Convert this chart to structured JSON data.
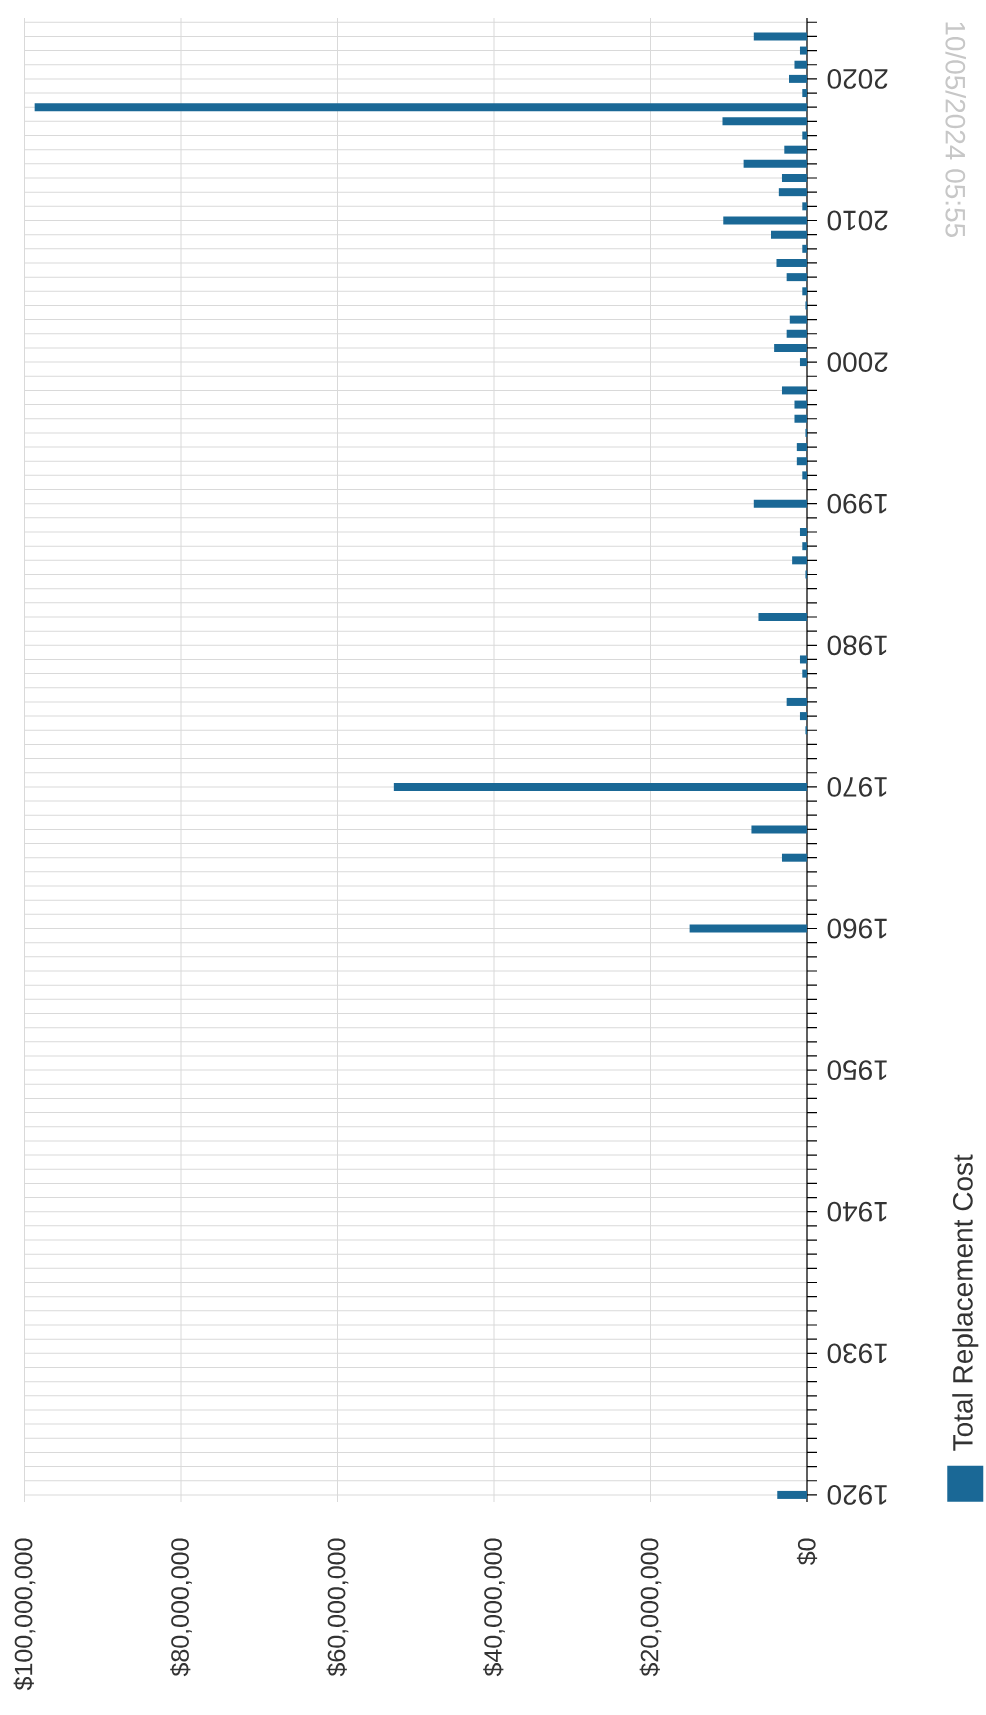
{
  "chart_data": {
    "type": "bar",
    "orientation": "horizontal",
    "x": [
      1920,
      1960,
      1965,
      1967,
      1970,
      1974,
      1975,
      1976,
      1978,
      1979,
      1982,
      1985,
      1986,
      1987,
      1988,
      1990,
      1992,
      1993,
      1994,
      1995,
      1996,
      1997,
      1998,
      2000,
      2001,
      2002,
      2003,
      2004,
      2005,
      2006,
      2007,
      2008,
      2009,
      2010,
      2011,
      2012,
      2013,
      2014,
      2015,
      2016,
      2017,
      2018,
      2019,
      2020,
      2021,
      2022,
      2023
    ],
    "series": [
      {
        "name": "Total Replacement Cost",
        "color": "#1a6896",
        "values": [
          3800000,
          15000000,
          3200000,
          7100000,
          52800000,
          200000,
          900000,
          2600000,
          600000,
          900000,
          6200000,
          200000,
          1900000,
          600000,
          900000,
          6800000,
          600000,
          1300000,
          1300000,
          200000,
          1600000,
          1600000,
          3200000,
          900000,
          4200000,
          2600000,
          2200000,
          200000,
          600000,
          2600000,
          3900000,
          600000,
          4600000,
          10700000,
          600000,
          3600000,
          3200000,
          8100000,
          2900000,
          600000,
          10800000,
          98700000,
          600000,
          2300000,
          1600000,
          900000,
          6800000
        ]
      }
    ],
    "xlim": [
      100000000,
      0
    ],
    "xticks": [
      {
        "value": 0,
        "label": "$0"
      },
      {
        "value": 20000000,
        "label": "$20,000,000"
      },
      {
        "value": 40000000,
        "label": "$40,000,000"
      },
      {
        "value": 60000000,
        "label": "$60,000,000"
      },
      {
        "value": 80000000,
        "label": "$80,000,000"
      },
      {
        "value": 100000000,
        "label": "$100,000,000"
      }
    ],
    "ylim": [
      1919.5,
      2024.3
    ],
    "yticks": [
      1920,
      {
        "value": 1921,
        "label": null
      },
      {
        "value": 1922,
        "label": null
      },
      {
        "value": 1923,
        "label": null
      },
      {
        "value": 1924,
        "label": null
      },
      {
        "value": 1925,
        "label": null
      },
      {
        "value": 1926,
        "label": null
      },
      {
        "value": 1927,
        "label": null
      },
      {
        "value": 1928,
        "label": null
      },
      {
        "value": 1929,
        "label": null
      },
      1930,
      {
        "value": 1931,
        "label": null
      },
      {
        "value": 1932,
        "label": null
      },
      {
        "value": 1933,
        "label": null
      },
      {
        "value": 1934,
        "label": null
      },
      {
        "value": 1935,
        "label": null
      },
      {
        "value": 1936,
        "label": null
      },
      {
        "value": 1937,
        "label": null
      },
      {
        "value": 1938,
        "label": null
      },
      {
        "value": 1939,
        "label": null
      },
      1940,
      {
        "value": 1941,
        "label": null
      },
      {
        "value": 1942,
        "label": null
      },
      {
        "value": 1943,
        "label": null
      },
      {
        "value": 1944,
        "label": null
      },
      {
        "value": 1945,
        "label": null
      },
      {
        "value": 1946,
        "label": null
      },
      {
        "value": 1947,
        "label": null
      },
      {
        "value": 1948,
        "label": null
      },
      {
        "value": 1949,
        "label": null
      },
      1950,
      {
        "value": 1951,
        "label": null
      },
      {
        "value": 1952,
        "label": null
      },
      {
        "value": 1953,
        "label": null
      },
      {
        "value": 1954,
        "label": null
      },
      {
        "value": 1955,
        "label": null
      },
      {
        "value": 1956,
        "label": null
      },
      {
        "value": 1957,
        "label": null
      },
      {
        "value": 1958,
        "label": null
      },
      {
        "value": 1959,
        "label": null
      },
      1960,
      {
        "value": 1961,
        "label": null
      },
      {
        "value": 1962,
        "label": null
      },
      {
        "value": 1963,
        "label": null
      },
      {
        "value": 1964,
        "label": null
      },
      {
        "value": 1965,
        "label": null
      },
      {
        "value": 1966,
        "label": null
      },
      {
        "value": 1967,
        "label": null
      },
      {
        "value": 1968,
        "label": null
      },
      {
        "value": 1969,
        "label": null
      },
      1970,
      {
        "value": 1971,
        "label": null
      },
      {
        "value": 1972,
        "label": null
      },
      {
        "value": 1973,
        "label": null
      },
      {
        "value": 1974,
        "label": null
      },
      {
        "value": 1975,
        "label": null
      },
      {
        "value": 1976,
        "label": null
      },
      {
        "value": 1977,
        "label": null
      },
      {
        "value": 1978,
        "label": null
      },
      {
        "value": 1979,
        "label": null
      },
      1980,
      {
        "value": 1981,
        "label": null
      },
      {
        "value": 1982,
        "label": null
      },
      {
        "value": 1983,
        "label": null
      },
      {
        "value": 1984,
        "label": null
      },
      {
        "value": 1985,
        "label": null
      },
      {
        "value": 1986,
        "label": null
      },
      {
        "value": 1987,
        "label": null
      },
      {
        "value": 1988,
        "label": null
      },
      {
        "value": 1989,
        "label": null
      },
      1990,
      {
        "value": 1991,
        "label": null
      },
      {
        "value": 1992,
        "label": null
      },
      {
        "value": 1993,
        "label": null
      },
      {
        "value": 1994,
        "label": null
      },
      {
        "value": 1995,
        "label": null
      },
      {
        "value": 1996,
        "label": null
      },
      {
        "value": 1997,
        "label": null
      },
      {
        "value": 1998,
        "label": null
      },
      {
        "value": 1999,
        "label": null
      },
      2000,
      {
        "value": 2001,
        "label": null
      },
      {
        "value": 2002,
        "label": null
      },
      {
        "value": 2003,
        "label": null
      },
      {
        "value": 2004,
        "label": null
      },
      {
        "value": 2005,
        "label": null
      },
      {
        "value": 2006,
        "label": null
      },
      {
        "value": 2007,
        "label": null
      },
      {
        "value": 2008,
        "label": null
      },
      {
        "value": 2009,
        "label": null
      },
      2010,
      {
        "value": 2011,
        "label": null
      },
      {
        "value": 2012,
        "label": null
      },
      {
        "value": 2013,
        "label": null
      },
      {
        "value": 2014,
        "label": null
      },
      {
        "value": 2015,
        "label": null
      },
      {
        "value": 2016,
        "label": null
      },
      {
        "value": 2017,
        "label": null
      },
      {
        "value": 2018,
        "label": null
      },
      {
        "value": 2019,
        "label": null
      },
      2020,
      {
        "value": 2021,
        "label": null
      },
      {
        "value": 2022,
        "label": null
      },
      {
        "value": 2023,
        "label": null
      },
      {
        "value": 2024,
        "label": null
      }
    ],
    "grid": true,
    "legend": "bottom right",
    "annotations": [
      "10/05/2024 05:55"
    ]
  }
}
